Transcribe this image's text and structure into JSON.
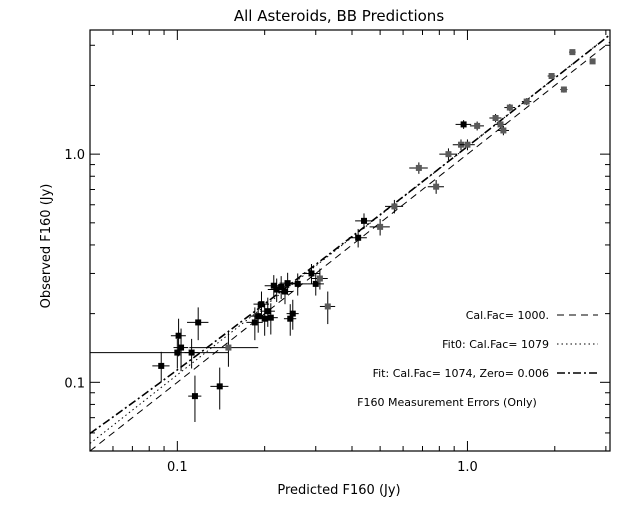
{
  "chart_data": {
    "type": "scatter",
    "title": "All Asteroids, BB Predictions",
    "xlabel": "Predicted F160 (Jy)",
    "ylabel": "Observed F160 (Jy)",
    "xscale": "log",
    "yscale": "log",
    "xlim": [
      0.05,
      3.1
    ],
    "ylim": [
      0.05,
      3.5
    ],
    "xticks": [
      {
        "value": 0.1,
        "label": "0.1"
      },
      {
        "value": 1.0,
        "label": "1.0"
      }
    ],
    "yticks": [
      {
        "value": 0.1,
        "label": "0.1"
      },
      {
        "value": 1.0,
        "label": "1.0"
      }
    ],
    "legend_position": "bottom-right",
    "legend": [
      {
        "label": "Cal.Fac= 1000.",
        "style": "dashed"
      },
      {
        "label": "Fit0: Cal.Fac= 1079",
        "style": "dotted"
      },
      {
        "label": "Fit: Cal.Fac= 1074, Zero=  0.006",
        "style": "dash-dot"
      },
      {
        "label": "F160 Measurement Errors (Only)",
        "style": "none"
      }
    ],
    "lines": [
      {
        "style": "dashed",
        "slope": 1.0,
        "intercept": 0.0
      },
      {
        "style": "dotted",
        "slope": 1.079,
        "intercept": 0.0
      },
      {
        "style": "dash-dot",
        "slope": 1.074,
        "intercept": 0.006
      }
    ],
    "points": [
      {
        "x": 0.088,
        "y": 0.118,
        "xerr": 0.006,
        "yerr": 0.018,
        "shade": "black"
      },
      {
        "x": 0.1,
        "y": 0.135,
        "xerr": 0.05,
        "yerr": 0.02,
        "shade": "black"
      },
      {
        "x": 0.101,
        "y": 0.16,
        "xerr": 0.006,
        "yerr": 0.03,
        "shade": "black"
      },
      {
        "x": 0.103,
        "y": 0.142,
        "xerr": 0.006,
        "yerr": 0.03,
        "shade": "black"
      },
      {
        "x": 0.112,
        "y": 0.135,
        "xerr": 0.006,
        "yerr": 0.02,
        "shade": "black"
      },
      {
        "x": 0.115,
        "y": 0.087,
        "xerr": 0.006,
        "yerr": 0.02,
        "shade": "black"
      },
      {
        "x": 0.118,
        "y": 0.183,
        "xerr": 0.01,
        "yerr": 0.03,
        "shade": "black"
      },
      {
        "x": 0.14,
        "y": 0.096,
        "xerr": 0.01,
        "yerr": 0.02,
        "shade": "black"
      },
      {
        "x": 0.15,
        "y": 0.142,
        "xerr": 0.04,
        "yerr": 0.025,
        "shade": "gray"
      },
      {
        "x": 0.185,
        "y": 0.183,
        "xerr": 0.012,
        "yerr": 0.03,
        "shade": "black"
      },
      {
        "x": 0.19,
        "y": 0.195,
        "xerr": 0.012,
        "yerr": 0.03,
        "shade": "black"
      },
      {
        "x": 0.195,
        "y": 0.22,
        "xerr": 0.012,
        "yerr": 0.03,
        "shade": "black"
      },
      {
        "x": 0.2,
        "y": 0.19,
        "xerr": 0.012,
        "yerr": 0.03,
        "shade": "black"
      },
      {
        "x": 0.205,
        "y": 0.205,
        "xerr": 0.012,
        "yerr": 0.03,
        "shade": "black"
      },
      {
        "x": 0.21,
        "y": 0.192,
        "xerr": 0.012,
        "yerr": 0.03,
        "shade": "black"
      },
      {
        "x": 0.215,
        "y": 0.265,
        "xerr": 0.015,
        "yerr": 0.03,
        "shade": "black"
      },
      {
        "x": 0.22,
        "y": 0.255,
        "xerr": 0.015,
        "yerr": 0.03,
        "shade": "black"
      },
      {
        "x": 0.228,
        "y": 0.262,
        "xerr": 0.015,
        "yerr": 0.03,
        "shade": "black"
      },
      {
        "x": 0.235,
        "y": 0.25,
        "xerr": 0.015,
        "yerr": 0.03,
        "shade": "black"
      },
      {
        "x": 0.24,
        "y": 0.272,
        "xerr": 0.015,
        "yerr": 0.03,
        "shade": "black"
      },
      {
        "x": 0.245,
        "y": 0.19,
        "xerr": 0.012,
        "yerr": 0.03,
        "shade": "black"
      },
      {
        "x": 0.25,
        "y": 0.2,
        "xerr": 0.012,
        "yerr": 0.03,
        "shade": "black"
      },
      {
        "x": 0.26,
        "y": 0.27,
        "xerr": 0.02,
        "yerr": 0.03,
        "shade": "black"
      },
      {
        "x": 0.29,
        "y": 0.3,
        "xerr": 0.02,
        "yerr": 0.03,
        "shade": "black"
      },
      {
        "x": 0.3,
        "y": 0.27,
        "xerr": 0.02,
        "yerr": 0.03,
        "shade": "black"
      },
      {
        "x": 0.31,
        "y": 0.285,
        "xerr": 0.02,
        "yerr": 0.03,
        "shade": "gray"
      },
      {
        "x": 0.33,
        "y": 0.215,
        "xerr": 0.02,
        "yerr": 0.035,
        "shade": "gray"
      },
      {
        "x": 0.42,
        "y": 0.43,
        "xerr": 0.03,
        "yerr": 0.04,
        "shade": "black"
      },
      {
        "x": 0.44,
        "y": 0.51,
        "xerr": 0.03,
        "yerr": 0.04,
        "shade": "black"
      },
      {
        "x": 0.5,
        "y": 0.48,
        "xerr": 0.04,
        "yerr": 0.04,
        "shade": "gray"
      },
      {
        "x": 0.56,
        "y": 0.59,
        "xerr": 0.04,
        "yerr": 0.04,
        "shade": "gray"
      },
      {
        "x": 0.68,
        "y": 0.87,
        "xerr": 0.05,
        "yerr": 0.05,
        "shade": "gray"
      },
      {
        "x": 0.78,
        "y": 0.72,
        "xerr": 0.05,
        "yerr": 0.05,
        "shade": "gray"
      },
      {
        "x": 0.86,
        "y": 1.0,
        "xerr": 0.06,
        "yerr": 0.06,
        "shade": "gray"
      },
      {
        "x": 0.95,
        "y": 1.1,
        "xerr": 0.06,
        "yerr": 0.06,
        "shade": "gray"
      },
      {
        "x": 0.97,
        "y": 1.35,
        "xerr": 0.06,
        "yerr": 0.06,
        "shade": "black"
      },
      {
        "x": 1.0,
        "y": 1.1,
        "xerr": 0.06,
        "yerr": 0.06,
        "shade": "gray"
      },
      {
        "x": 1.08,
        "y": 1.33,
        "xerr": 0.06,
        "yerr": 0.06,
        "shade": "gray"
      },
      {
        "x": 1.25,
        "y": 1.44,
        "xerr": 0.06,
        "yerr": 0.06,
        "shade": "gray"
      },
      {
        "x": 1.3,
        "y": 1.35,
        "xerr": 0.06,
        "yerr": 0.06,
        "shade": "gray"
      },
      {
        "x": 1.33,
        "y": 1.27,
        "xerr": 0.06,
        "yerr": 0.06,
        "shade": "gray"
      },
      {
        "x": 1.4,
        "y": 1.6,
        "xerr": 0.06,
        "yerr": 0.06,
        "shade": "gray"
      },
      {
        "x": 1.6,
        "y": 1.7,
        "xerr": 0.06,
        "yerr": 0.06,
        "shade": "gray"
      },
      {
        "x": 1.95,
        "y": 2.2,
        "xerr": 0.06,
        "yerr": 0.06,
        "shade": "gray"
      },
      {
        "x": 2.15,
        "y": 1.92,
        "xerr": 0.06,
        "yerr": 0.06,
        "shade": "gray"
      },
      {
        "x": 2.3,
        "y": 2.8,
        "xerr": 0.06,
        "yerr": 0.06,
        "shade": "gray"
      },
      {
        "x": 2.7,
        "y": 2.55,
        "xerr": 0.06,
        "yerr": 0.06,
        "shade": "gray"
      }
    ],
    "colors": {
      "black": "#000000",
      "gray": "#5a5a5a"
    }
  }
}
